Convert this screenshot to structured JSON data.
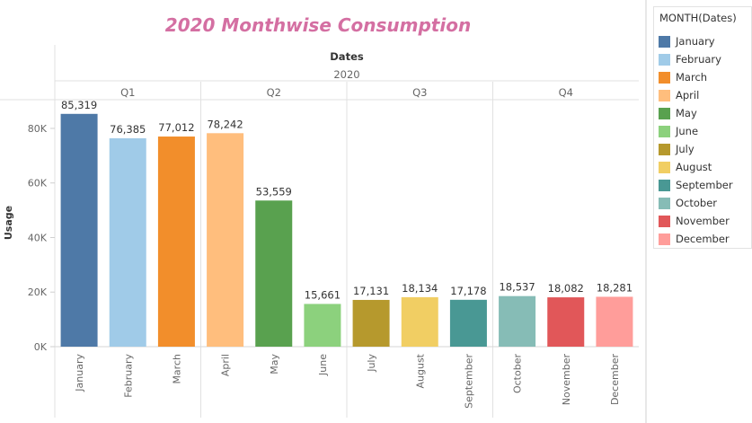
{
  "chart_data": {
    "type": "bar",
    "title": "2020 Monthwise Consumption",
    "column_header": "Dates",
    "year": "2020",
    "quarters": [
      "Q1",
      "Q2",
      "Q3",
      "Q4"
    ],
    "categories": [
      "January",
      "February",
      "March",
      "April",
      "May",
      "June",
      "July",
      "August",
      "September",
      "October",
      "November",
      "December"
    ],
    "values": [
      85319,
      76385,
      77012,
      78242,
      53559,
      15661,
      17131,
      18134,
      17178,
      18537,
      18082,
      18281
    ],
    "value_labels": [
      "85,319",
      "76,385",
      "77,012",
      "78,242",
      "53,559",
      "15,661",
      "17,131",
      "18,134",
      "17,178",
      "18,537",
      "18,082",
      "18,281"
    ],
    "colors": [
      "#4e79a7",
      "#a0cbe8",
      "#f28e2b",
      "#ffbe7d",
      "#59a14f",
      "#8cd17d",
      "#b6992d",
      "#f1ce63",
      "#499894",
      "#86bcb6",
      "#e15759",
      "#ff9d9a"
    ],
    "ylabel": "Usage",
    "ylim": [
      0,
      92000
    ],
    "yticks": [
      0,
      20000,
      40000,
      60000,
      80000
    ],
    "ytick_labels": [
      "0K",
      "20K",
      "40K",
      "60K",
      "80K"
    ],
    "legend_position": "right"
  },
  "legend": {
    "title": "MONTH(Dates)"
  }
}
